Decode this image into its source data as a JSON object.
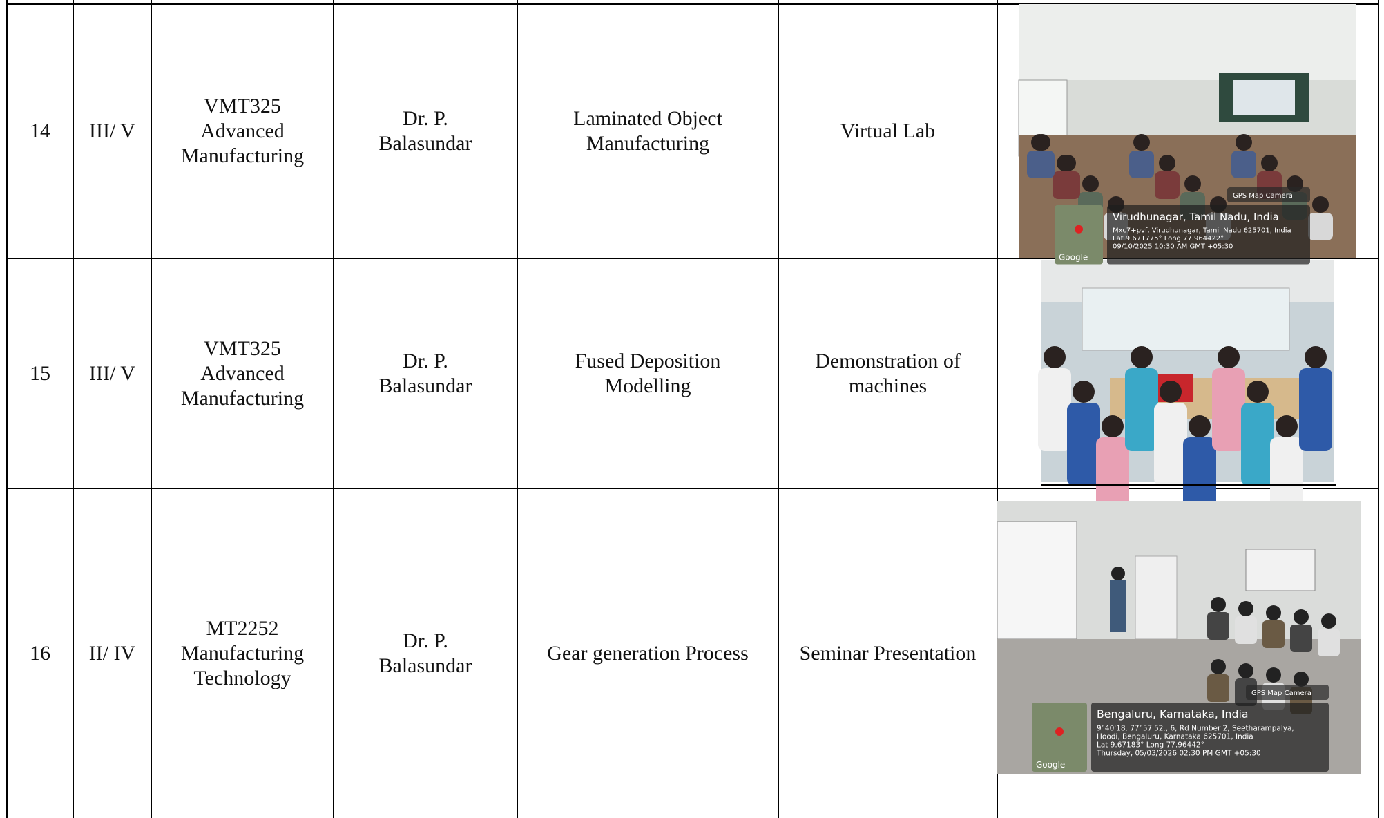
{
  "table": {
    "rows": [
      {
        "number": "14",
        "semester": "III/ V",
        "course": [
          "VMT325",
          "Advanced",
          "Manufacturing"
        ],
        "faculty": [
          "Dr. P.",
          "Balasundar"
        ],
        "topic": [
          "Laminated Object",
          "Manufacturing"
        ],
        "method": [
          "Virtual Lab"
        ],
        "photo": {
          "badge": "GPS Map Camera",
          "map": "Google",
          "lines": [
            "Virudhunagar, Tamil Nadu, India",
            "Mxc7+pvf, Virudhunagar, Tamil Nadu 625701, India",
            "Lat 9.671775° Long 77.964422°",
            "09/10/2025 10:30 AM GMT +05:30"
          ]
        }
      },
      {
        "number": "15",
        "semester": "III/ V",
        "course": [
          "VMT325",
          "Advanced",
          "Manufacturing"
        ],
        "faculty": [
          "Dr. P.",
          "Balasundar"
        ],
        "topic": [
          "Fused Deposition",
          "Modelling"
        ],
        "method": [
          "Demonstration of",
          "machines"
        ]
      },
      {
        "number": "16",
        "semester": "II/ IV",
        "course": [
          "MT2252",
          "Manufacturing",
          "Technology"
        ],
        "faculty": [
          "Dr. P.",
          "Balasundar"
        ],
        "topic": [
          "Gear generation Process"
        ],
        "method": [
          "Seminar Presentation"
        ],
        "photo": {
          "badge": "GPS Map Camera",
          "map": "Google",
          "lines": [
            "Bengaluru, Karnataka, India",
            "9°40'18. 77°57'52., 6, Rd Number 2, Seetharampalya,",
            "Hoodi, Bengaluru, Karnataka 625701, India",
            "Lat 9.67183° Long 77.96442°",
            "Thursday, 05/03/2026 02:30 PM GMT +05:30"
          ]
        }
      }
    ]
  }
}
